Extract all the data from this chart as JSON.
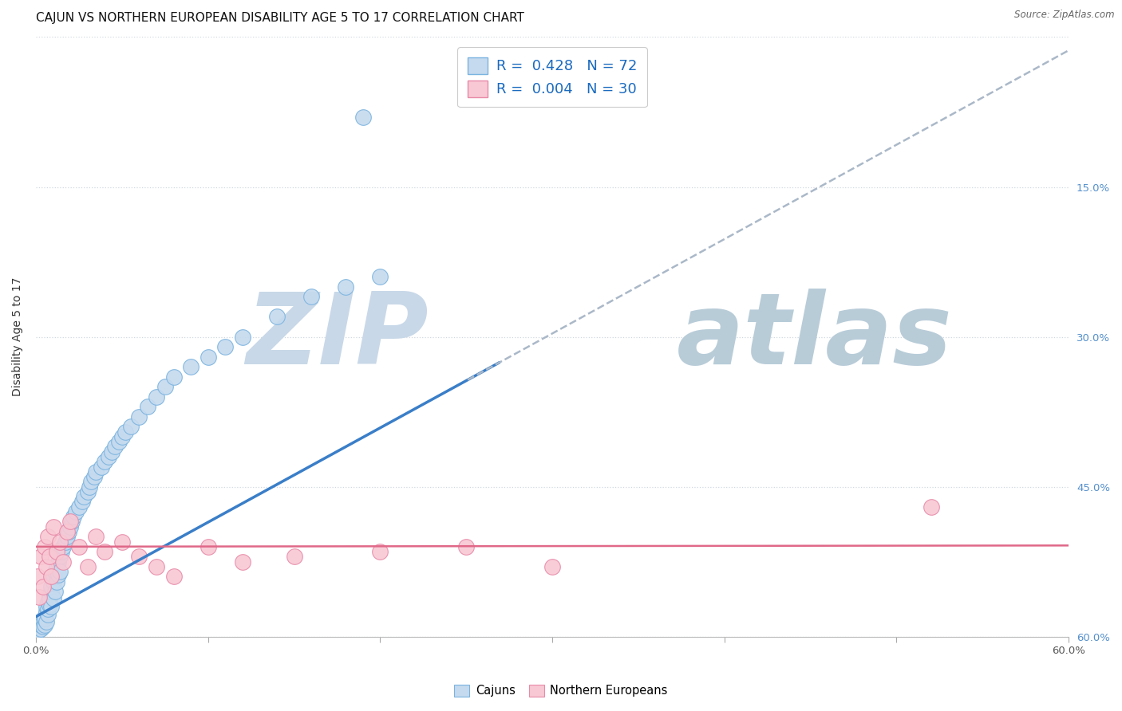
{
  "title": "CAJUN VS NORTHERN EUROPEAN DISABILITY AGE 5 TO 17 CORRELATION CHART",
  "source": "Source: ZipAtlas.com",
  "ylabel": "Disability Age 5 to 17",
  "xlim": [
    0.0,
    0.6
  ],
  "ylim": [
    0.0,
    0.6
  ],
  "cajun_R": 0.428,
  "cajun_N": 72,
  "northern_R": 0.004,
  "northern_N": 30,
  "cajun_fill": "#c5daee",
  "cajun_edge": "#7ab3e0",
  "northern_fill": "#f8c8d4",
  "northern_edge": "#e88aa8",
  "cajun_line": "#3a7ec8",
  "northern_line": "#e06888",
  "dashed_color": "#aab8c8",
  "grid_color": "#d0d8e0",
  "right_tick_color": "#5590cc",
  "bg_color": "#ffffff",
  "watermark_zip_color": "#c8d8e8",
  "watermark_atlas_color": "#b8ccd8",
  "title_fs": 11,
  "label_fs": 10,
  "tick_fs": 9.5,
  "legend_fs": 13,
  "cajun_x": [
    0.001,
    0.002,
    0.003,
    0.003,
    0.004,
    0.004,
    0.005,
    0.005,
    0.005,
    0.006,
    0.006,
    0.006,
    0.007,
    0.007,
    0.007,
    0.008,
    0.008,
    0.008,
    0.009,
    0.009,
    0.009,
    0.01,
    0.01,
    0.01,
    0.011,
    0.011,
    0.012,
    0.012,
    0.013,
    0.013,
    0.014,
    0.014,
    0.015,
    0.016,
    0.017,
    0.018,
    0.019,
    0.02,
    0.021,
    0.022,
    0.023,
    0.025,
    0.027,
    0.028,
    0.03,
    0.031,
    0.032,
    0.034,
    0.035,
    0.038,
    0.04,
    0.042,
    0.044,
    0.046,
    0.048,
    0.05,
    0.052,
    0.055,
    0.06,
    0.065,
    0.07,
    0.075,
    0.08,
    0.09,
    0.1,
    0.11,
    0.12,
    0.14,
    0.16,
    0.18,
    0.2,
    0.19
  ],
  "cajun_y": [
    0.005,
    0.01,
    0.008,
    0.012,
    0.015,
    0.01,
    0.02,
    0.012,
    0.018,
    0.025,
    0.015,
    0.03,
    0.022,
    0.035,
    0.028,
    0.04,
    0.032,
    0.038,
    0.045,
    0.05,
    0.03,
    0.055,
    0.06,
    0.038,
    0.065,
    0.045,
    0.07,
    0.055,
    0.075,
    0.062,
    0.08,
    0.065,
    0.085,
    0.09,
    0.095,
    0.1,
    0.105,
    0.11,
    0.115,
    0.12,
    0.125,
    0.13,
    0.135,
    0.14,
    0.145,
    0.15,
    0.155,
    0.16,
    0.165,
    0.17,
    0.175,
    0.18,
    0.185,
    0.19,
    0.195,
    0.2,
    0.205,
    0.21,
    0.22,
    0.23,
    0.24,
    0.25,
    0.26,
    0.27,
    0.28,
    0.29,
    0.3,
    0.32,
    0.34,
    0.35,
    0.36,
    0.52
  ],
  "northern_x": [
    0.001,
    0.002,
    0.003,
    0.004,
    0.005,
    0.006,
    0.007,
    0.008,
    0.009,
    0.01,
    0.012,
    0.014,
    0.016,
    0.018,
    0.02,
    0.025,
    0.03,
    0.035,
    0.04,
    0.05,
    0.06,
    0.07,
    0.08,
    0.1,
    0.12,
    0.15,
    0.2,
    0.25,
    0.3,
    0.52
  ],
  "northern_y": [
    0.06,
    0.04,
    0.08,
    0.05,
    0.09,
    0.07,
    0.1,
    0.08,
    0.06,
    0.11,
    0.085,
    0.095,
    0.075,
    0.105,
    0.115,
    0.09,
    0.07,
    0.1,
    0.085,
    0.095,
    0.08,
    0.07,
    0.06,
    0.09,
    0.075,
    0.08,
    0.085,
    0.09,
    0.07,
    0.13
  ]
}
